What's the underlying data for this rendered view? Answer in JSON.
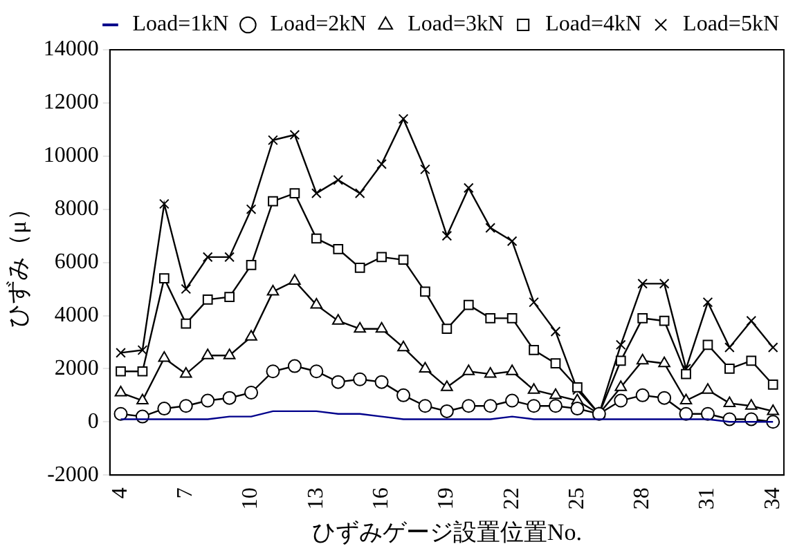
{
  "chart_data": {
    "type": "line",
    "xlabel": "ひずみゲージ設置位置No.",
    "ylabel": "ひずみ（μ）",
    "categories": [
      "4",
      null,
      null,
      "7",
      null,
      null,
      "10",
      null,
      null,
      "13",
      null,
      null,
      "16",
      null,
      null,
      "19",
      null,
      null,
      "22",
      null,
      null,
      "25",
      null,
      null,
      "28",
      null,
      null,
      "31",
      null,
      null,
      "34"
    ],
    "ylim": [
      -2000,
      14000
    ],
    "yticks": [
      -2000,
      0,
      2000,
      4000,
      6000,
      8000,
      10000,
      12000,
      14000
    ],
    "grid": false,
    "legend": "top right",
    "series": [
      {
        "name": "Load=1kN",
        "color": "#00008b",
        "marker": "none",
        "values": [
          100,
          100,
          100,
          100,
          100,
          200,
          200,
          400,
          400,
          400,
          300,
          300,
          200,
          100,
          100,
          100,
          100,
          100,
          200,
          100,
          100,
          100,
          100,
          100,
          100,
          100,
          100,
          100,
          0,
          0,
          0
        ]
      },
      {
        "name": "Load=2kN",
        "color": "#000000",
        "marker": "circle",
        "values": [
          300,
          200,
          500,
          600,
          800,
          900,
          1100,
          1900,
          2100,
          1900,
          1500,
          1600,
          1500,
          1000,
          600,
          400,
          600,
          600,
          800,
          600,
          600,
          500,
          300,
          800,
          1000,
          900,
          300,
          300,
          100,
          100,
          0
        ]
      },
      {
        "name": "Load=3kN",
        "color": "#000000",
        "marker": "triangle",
        "values": [
          1100,
          800,
          2400,
          1800,
          2500,
          2500,
          3200,
          4900,
          5300,
          4400,
          3800,
          3500,
          3500,
          2800,
          2000,
          1300,
          1900,
          1800,
          1900,
          1200,
          1000,
          800,
          300,
          1300,
          2300,
          2200,
          800,
          1200,
          700,
          600,
          400
        ]
      },
      {
        "name": "Load=4kN",
        "color": "#000000",
        "marker": "square",
        "values": [
          1900,
          1900,
          5400,
          3700,
          4600,
          4700,
          5900,
          8300,
          8600,
          6900,
          6500,
          5800,
          6200,
          6100,
          4900,
          3500,
          4400,
          3900,
          3900,
          2700,
          2200,
          1300,
          300,
          2300,
          3900,
          3800,
          1800,
          2900,
          2000,
          2300,
          1400
        ]
      },
      {
        "name": "Load=5kN",
        "color": "#000000",
        "marker": "cross",
        "values": [
          2600,
          2700,
          8200,
          5000,
          6200,
          6200,
          8000,
          10600,
          10800,
          8600,
          9100,
          8600,
          9700,
          11400,
          9500,
          7000,
          8800,
          7300,
          6800,
          4500,
          3400,
          1200,
          300,
          2900,
          5200,
          5200,
          2000,
          4500,
          2800,
          3800,
          2800
        ]
      }
    ]
  }
}
